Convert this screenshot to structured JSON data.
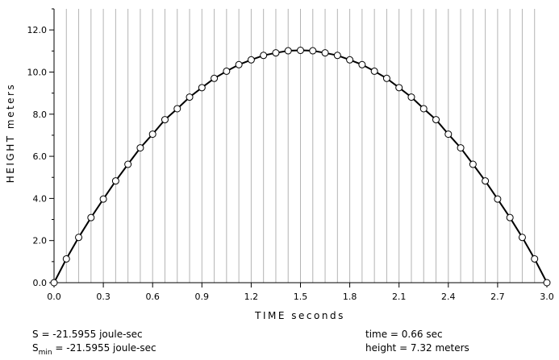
{
  "chart_data": {
    "type": "line",
    "xlabel": "TIME  seconds",
    "ylabel": "HEIGHT  meters",
    "xlim": [
      0.0,
      3.0
    ],
    "ylim": [
      0.0,
      13.0
    ],
    "x_ticks": [
      "0.0",
      "0.3",
      "0.6",
      "0.9",
      "1.2",
      "1.5",
      "1.8",
      "2.1",
      "2.4",
      "2.7",
      "3.0"
    ],
    "y_ticks": [
      "0.0",
      "2.0",
      "4.0",
      "6.0",
      "8.0",
      "10.0",
      "12.0"
    ],
    "x_tick_values": [
      0.0,
      0.3,
      0.6,
      0.9,
      1.2,
      1.5,
      1.8,
      2.1,
      2.4,
      2.7,
      3.0
    ],
    "y_tick_values": [
      0,
      2,
      4,
      6,
      8,
      10,
      12
    ],
    "grid": "vertical",
    "series": [
      {
        "marker": "open-circle",
        "points": [
          [
            0.0,
            0.0
          ],
          [
            0.075,
            1.13
          ],
          [
            0.15,
            2.15
          ],
          [
            0.225,
            3.09
          ],
          [
            0.3,
            3.97
          ],
          [
            0.375,
            4.83
          ],
          [
            0.45,
            5.62
          ],
          [
            0.525,
            6.4
          ],
          [
            0.6,
            7.05
          ],
          [
            0.675,
            7.74
          ],
          [
            0.75,
            8.26
          ],
          [
            0.825,
            8.81
          ],
          [
            0.9,
            9.26
          ],
          [
            0.975,
            9.7
          ],
          [
            1.05,
            10.04
          ],
          [
            1.125,
            10.35
          ],
          [
            1.2,
            10.58
          ],
          [
            1.275,
            10.79
          ],
          [
            1.35,
            10.91
          ],
          [
            1.425,
            11.01
          ],
          [
            1.5,
            11.03
          ],
          [
            1.575,
            11.01
          ],
          [
            1.65,
            10.91
          ],
          [
            1.725,
            10.79
          ],
          [
            1.8,
            10.58
          ],
          [
            1.875,
            10.35
          ],
          [
            1.95,
            10.04
          ],
          [
            2.025,
            9.7
          ],
          [
            2.1,
            9.26
          ],
          [
            2.175,
            8.81
          ],
          [
            2.25,
            8.26
          ],
          [
            2.325,
            7.74
          ],
          [
            2.4,
            7.05
          ],
          [
            2.475,
            6.4
          ],
          [
            2.55,
            5.62
          ],
          [
            2.625,
            4.83
          ],
          [
            2.7,
            3.97
          ],
          [
            2.775,
            3.09
          ],
          [
            2.85,
            2.15
          ],
          [
            2.925,
            1.13
          ],
          [
            3.0,
            0.0
          ]
        ]
      }
    ]
  },
  "readouts": {
    "action_label": "S",
    "action_value": " = -21.5955 joule-sec",
    "smin_label": "S",
    "smin_sub": "min",
    "smin_value": " = -21.5955 joule-sec",
    "time": "time = 0.66 sec",
    "height": "height = 7.32 meters"
  }
}
